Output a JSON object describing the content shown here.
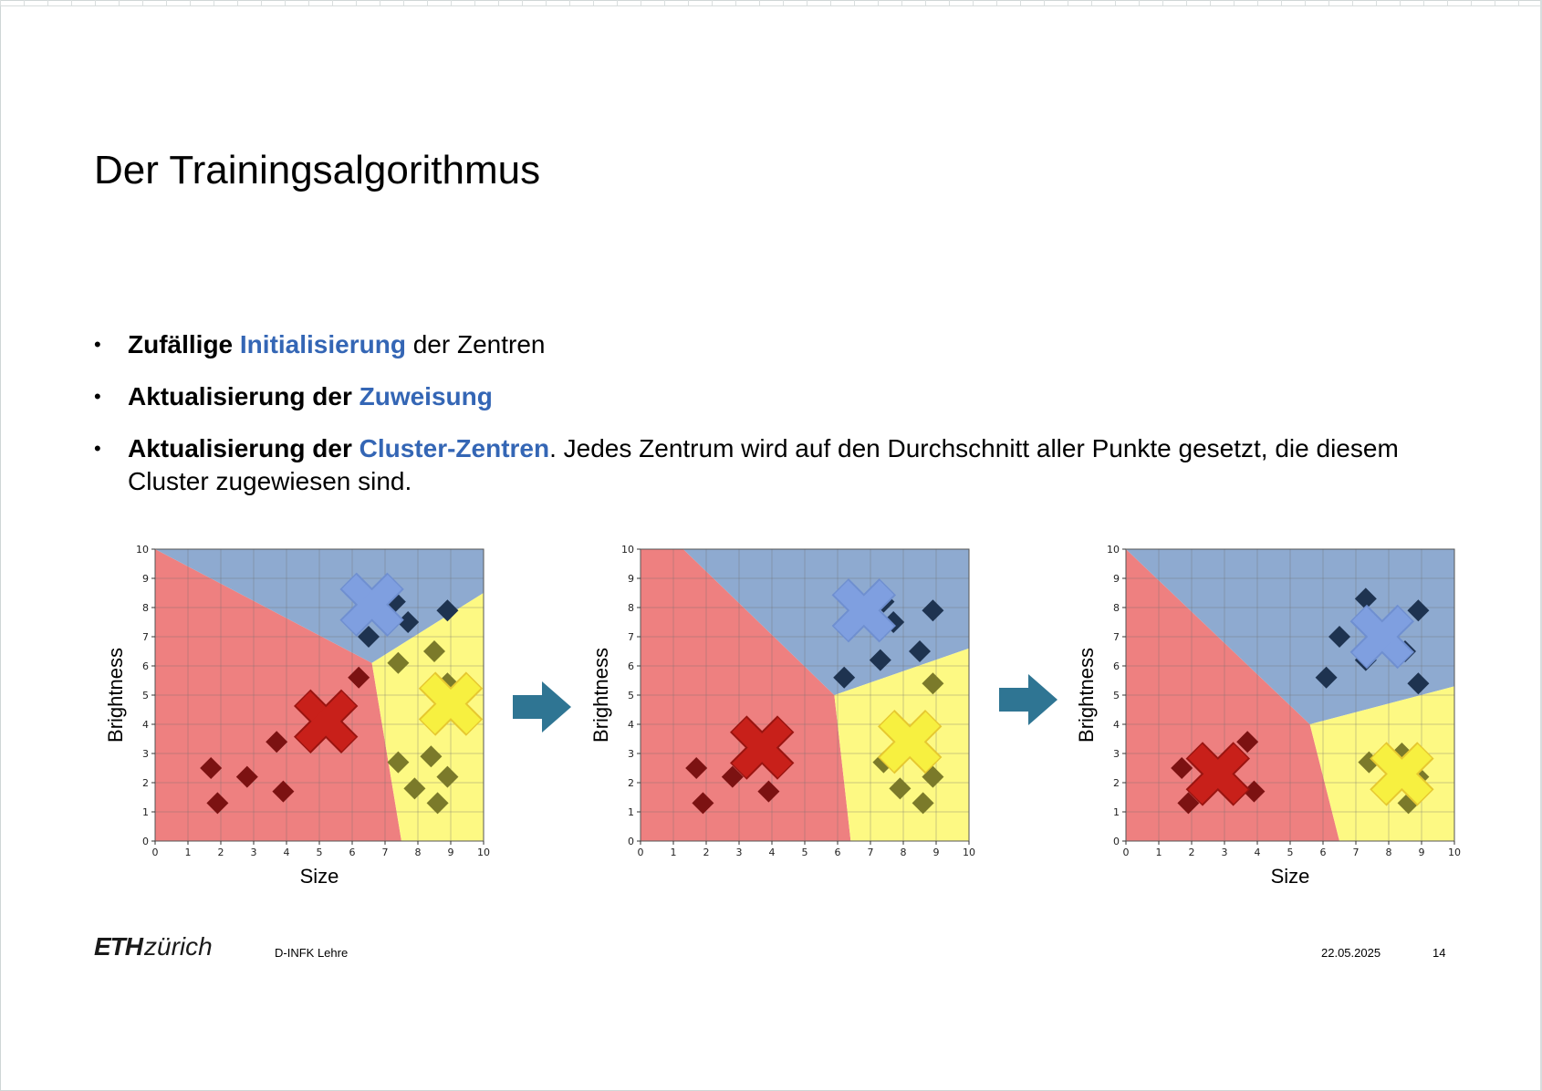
{
  "slide": {
    "title": "Der Trainingsalgorithmus",
    "bullets": [
      {
        "strong": "Zufällige ",
        "highlight": "Initialisierung",
        "rest": " der Zentren"
      },
      {
        "strong": "Aktualisierung der ",
        "highlight": "Zuweisung",
        "rest": ""
      },
      {
        "strong": "Aktualisierung der ",
        "highlight": "Cluster-Zentren",
        "rest": ". Jedes Zentrum wird auf den Durchschnitt aller Punkte gesetzt, die diesem Cluster zugewiesen sind."
      }
    ]
  },
  "footer": {
    "logo_bold": "ETH",
    "logo_rest": "zürich",
    "department": "D-INFK Lehre",
    "date": "22.05.2025",
    "page": "14"
  },
  "colors": {
    "highlight": "#3466b5",
    "red_region": "#ee8080",
    "blue_region": "#8eaad0",
    "yellow_region": "#fdf983",
    "red_point": "#7c1212",
    "blue_point": "#1e3350",
    "yellow_point": "#7b7a2a",
    "red_center": "#c8201a",
    "blue_center": "#7f9fe0",
    "yellow_center": "#f7f040",
    "arrow": "#2f7593"
  },
  "chart_data": [
    {
      "type": "scatter",
      "xlabel": "Size",
      "ylabel": "Brightness",
      "xlim": [
        0,
        10
      ],
      "ylim": [
        0,
        10
      ],
      "xticks": [
        "0",
        "1",
        "2",
        "3",
        "4",
        "5",
        "6",
        "7",
        "8",
        "9",
        "10"
      ],
      "yticks": [
        "0",
        "1",
        "2",
        "3",
        "4",
        "5",
        "6",
        "7",
        "8",
        "9",
        "10"
      ],
      "grid": true,
      "regions": {
        "red": [
          [
            0,
            0
          ],
          [
            0,
            10
          ],
          [
            6.6,
            6.1
          ],
          [
            7.5,
            0
          ]
        ],
        "blue": [
          [
            0,
            10
          ],
          [
            10,
            10
          ],
          [
            10,
            8.5
          ],
          [
            6.6,
            6.1
          ]
        ],
        "yellow": [
          [
            6.6,
            6.1
          ],
          [
            10,
            8.5
          ],
          [
            10,
            0
          ],
          [
            7.5,
            0
          ]
        ]
      },
      "series": [
        {
          "cluster": "red",
          "points": [
            [
              1.7,
              2.5
            ],
            [
              1.9,
              1.3
            ],
            [
              2.8,
              2.2
            ],
            [
              3.7,
              3.4
            ],
            [
              3.9,
              1.7
            ],
            [
              6.2,
              5.6
            ]
          ]
        },
        {
          "cluster": "blue",
          "points": [
            [
              6.5,
              7.0
            ],
            [
              7.3,
              8.2
            ],
            [
              7.7,
              7.5
            ],
            [
              8.9,
              7.9
            ]
          ]
        },
        {
          "cluster": "yellow",
          "points": [
            [
              7.4,
              6.1
            ],
            [
              8.5,
              6.5
            ],
            [
              8.9,
              5.4
            ],
            [
              7.4,
              2.7
            ],
            [
              7.9,
              1.8
            ],
            [
              8.4,
              2.9
            ],
            [
              8.9,
              2.2
            ],
            [
              8.6,
              1.3
            ]
          ]
        }
      ],
      "centers": [
        {
          "cluster": "red",
          "x": 5.2,
          "y": 4.1
        },
        {
          "cluster": "blue",
          "x": 6.6,
          "y": 8.1
        },
        {
          "cluster": "yellow",
          "x": 9.0,
          "y": 4.7
        }
      ]
    },
    {
      "type": "scatter",
      "xlabel": "",
      "ylabel": "Brightness",
      "xlim": [
        0,
        10
      ],
      "ylim": [
        0,
        10
      ],
      "xticks": [
        "0",
        "1",
        "2",
        "3",
        "4",
        "5",
        "6",
        "7",
        "8",
        "9",
        "10"
      ],
      "yticks": [
        "0",
        "1",
        "2",
        "3",
        "4",
        "5",
        "6",
        "7",
        "8",
        "9",
        "10"
      ],
      "grid": true,
      "regions": {
        "red": [
          [
            0,
            0
          ],
          [
            0,
            10
          ],
          [
            1.3,
            10
          ],
          [
            5.9,
            5.0
          ],
          [
            6.4,
            0
          ]
        ],
        "blue": [
          [
            1.3,
            10
          ],
          [
            10,
            10
          ],
          [
            10,
            6.6
          ],
          [
            5.9,
            5.0
          ]
        ],
        "yellow": [
          [
            5.9,
            5.0
          ],
          [
            10,
            6.6
          ],
          [
            10,
            0
          ],
          [
            6.4,
            0
          ]
        ]
      },
      "series": [
        {
          "cluster": "red",
          "points": [
            [
              1.7,
              2.5
            ],
            [
              1.9,
              1.3
            ],
            [
              2.8,
              2.2
            ],
            [
              3.9,
              1.7
            ]
          ]
        },
        {
          "cluster": "blue",
          "points": [
            [
              6.2,
              5.6
            ],
            [
              7.3,
              6.2
            ],
            [
              7.7,
              7.5
            ],
            [
              8.5,
              6.5
            ],
            [
              8.9,
              7.9
            ],
            [
              7.4,
              8.2
            ]
          ]
        },
        {
          "cluster": "yellow",
          "points": [
            [
              8.9,
              5.4
            ],
            [
              7.4,
              2.7
            ],
            [
              7.9,
              1.8
            ],
            [
              8.9,
              2.2
            ],
            [
              8.6,
              1.3
            ]
          ]
        }
      ],
      "centers": [
        {
          "cluster": "red",
          "x": 3.7,
          "y": 3.2
        },
        {
          "cluster": "blue",
          "x": 6.8,
          "y": 7.9
        },
        {
          "cluster": "yellow",
          "x": 8.2,
          "y": 3.4
        }
      ]
    },
    {
      "type": "scatter",
      "xlabel": "Size",
      "ylabel": "Brightness",
      "xlim": [
        0,
        10
      ],
      "ylim": [
        0,
        10
      ],
      "xticks": [
        "0",
        "1",
        "2",
        "3",
        "4",
        "5",
        "6",
        "7",
        "8",
        "9",
        "10"
      ],
      "yticks": [
        "0",
        "1",
        "2",
        "3",
        "4",
        "5",
        "6",
        "7",
        "8",
        "9",
        "10"
      ],
      "grid": true,
      "regions": {
        "red": [
          [
            0,
            0
          ],
          [
            0,
            10
          ],
          [
            5.6,
            4.0
          ],
          [
            6.5,
            0
          ]
        ],
        "blue": [
          [
            0,
            10
          ],
          [
            10,
            10
          ],
          [
            10,
            5.3
          ],
          [
            5.6,
            4.0
          ]
        ],
        "yellow": [
          [
            5.6,
            4.0
          ],
          [
            10,
            5.3
          ],
          [
            10,
            0
          ],
          [
            6.5,
            0
          ]
        ]
      },
      "series": [
        {
          "cluster": "red",
          "points": [
            [
              1.7,
              2.5
            ],
            [
              1.9,
              1.3
            ],
            [
              3.7,
              3.4
            ],
            [
              3.9,
              1.7
            ]
          ]
        },
        {
          "cluster": "blue",
          "points": [
            [
              6.1,
              5.6
            ],
            [
              6.5,
              7.0
            ],
            [
              7.3,
              8.3
            ],
            [
              7.3,
              6.2
            ],
            [
              8.5,
              6.5
            ],
            [
              8.9,
              7.9
            ],
            [
              8.9,
              5.4
            ]
          ]
        },
        {
          "cluster": "yellow",
          "points": [
            [
              7.4,
              2.7
            ],
            [
              8.4,
              3.0
            ],
            [
              8.9,
              2.2
            ],
            [
              8.6,
              1.3
            ]
          ]
        }
      ],
      "centers": [
        {
          "cluster": "red",
          "x": 2.8,
          "y": 2.3
        },
        {
          "cluster": "blue",
          "x": 7.8,
          "y": 7.0
        },
        {
          "cluster": "yellow",
          "x": 8.4,
          "y": 2.3
        }
      ]
    }
  ]
}
